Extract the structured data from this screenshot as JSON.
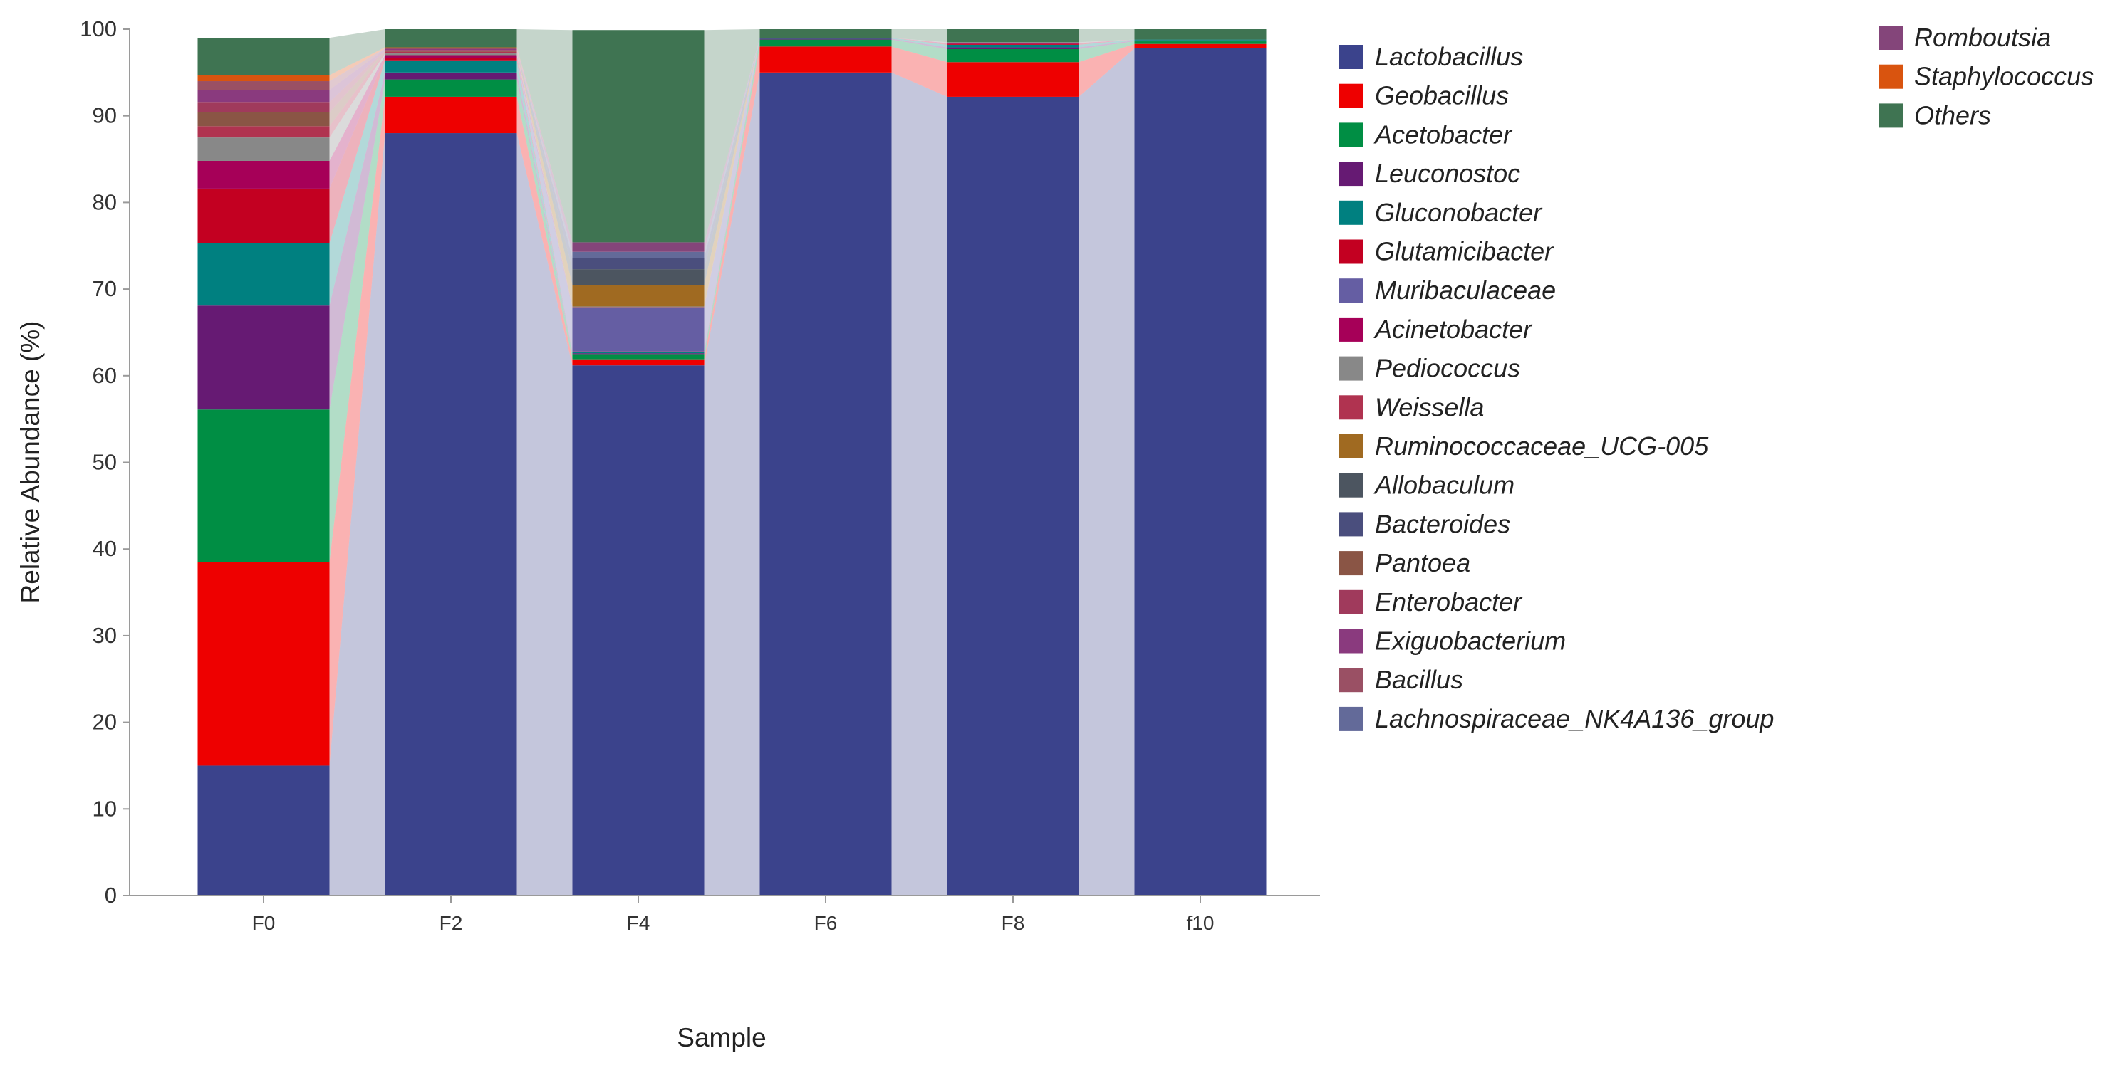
{
  "chart_data": {
    "type": "bar",
    "stacked": true,
    "title": "",
    "xlabel": "Sample",
    "ylabel": "Relative Abundance (%)",
    "ylim": [
      0,
      100
    ],
    "yticks": [
      0,
      10,
      20,
      30,
      40,
      50,
      60,
      70,
      80,
      90,
      100
    ],
    "grid": false,
    "legend_position": "right",
    "connectors": true,
    "categories": [
      "F0",
      "F2",
      "F4",
      "F6",
      "F8",
      "f10"
    ],
    "series": [
      {
        "name": "Lactobacillus",
        "color": "#3b438c",
        "values": [
          15.0,
          88.0,
          61.2,
          95.0,
          92.2,
          97.8
        ]
      },
      {
        "name": "Geobacillus",
        "color": "#ee0000",
        "values": [
          23.5,
          4.2,
          0.7,
          3.0,
          4.0,
          0.5
        ]
      },
      {
        "name": "Acetobacter",
        "color": "#008e44",
        "values": [
          17.6,
          2.0,
          0.6,
          0.8,
          1.5,
          0.3
        ]
      },
      {
        "name": "Leuconostoc",
        "color": "#661a73",
        "values": [
          12.0,
          0.8,
          0.1,
          0.1,
          0.2,
          0.1
        ]
      },
      {
        "name": "Gluconobacter",
        "color": "#008080",
        "values": [
          7.2,
          1.4,
          0.1,
          0.1,
          0.3,
          0.1
        ]
      },
      {
        "name": "Glutamicibacter",
        "color": "#c30021",
        "values": [
          6.3,
          0.3,
          0.1,
          0.0,
          0.1,
          0.0
        ]
      },
      {
        "name": "Muribaculaceae",
        "color": "#655ea3",
        "values": [
          0.0,
          0.0,
          5.0,
          0.0,
          0.0,
          0.0
        ]
      },
      {
        "name": "Acinetobacter",
        "color": "#a60058",
        "values": [
          3.2,
          0.3,
          0.1,
          0.0,
          0.1,
          0.0
        ]
      },
      {
        "name": "Pediococcus",
        "color": "#888888",
        "values": [
          2.7,
          0.2,
          0.1,
          0.0,
          0.1,
          0.0
        ]
      },
      {
        "name": "Weissella",
        "color": "#b03350",
        "values": [
          1.3,
          0.2,
          0.0,
          0.0,
          0.0,
          0.0
        ]
      },
      {
        "name": "Ruminococcaceae_UCG-005",
        "color": "#a06a21",
        "values": [
          0.0,
          0.0,
          2.5,
          0.0,
          0.0,
          0.0
        ]
      },
      {
        "name": "Allobaculum",
        "color": "#4c5560",
        "values": [
          0.0,
          0.0,
          1.8,
          0.0,
          0.0,
          0.0
        ]
      },
      {
        "name": "Bacteroides",
        "color": "#4a4e7d",
        "values": [
          0.0,
          0.0,
          1.3,
          0.0,
          0.0,
          0.0
        ]
      },
      {
        "name": "Pantoea",
        "color": "#8a5545",
        "values": [
          1.6,
          0.1,
          0.0,
          0.0,
          0.0,
          0.0
        ]
      },
      {
        "name": "Enterobacter",
        "color": "#a03a5c",
        "values": [
          1.2,
          0.1,
          0.0,
          0.0,
          0.0,
          0.0
        ]
      },
      {
        "name": "Exiguobacterium",
        "color": "#8a3a7e",
        "values": [
          1.4,
          0.1,
          0.0,
          0.0,
          0.0,
          0.0
        ]
      },
      {
        "name": "Bacillus",
        "color": "#9a5064",
        "values": [
          1.0,
          0.1,
          0.0,
          0.0,
          0.0,
          0.0
        ]
      },
      {
        "name": "Lachnospiraceae_NK4A136_group",
        "color": "#636a99",
        "values": [
          0.0,
          0.0,
          0.7,
          0.0,
          0.0,
          0.0
        ]
      },
      {
        "name": "Romboutsia",
        "color": "#84457a",
        "values": [
          0.0,
          0.0,
          1.1,
          0.0,
          0.0,
          0.0
        ]
      },
      {
        "name": "Staphylococcus",
        "color": "#d9540f",
        "values": [
          0.7,
          0.1,
          0.0,
          0.0,
          0.0,
          0.0
        ]
      },
      {
        "name": "Others",
        "color": "#3f7452",
        "values": [
          4.3,
          2.1,
          24.5,
          1.0,
          1.5,
          1.2
        ]
      }
    ]
  }
}
